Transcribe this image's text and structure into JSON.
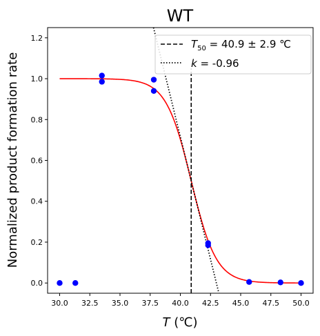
{
  "chart_data": {
    "type": "scatter",
    "title": "WT",
    "xlabel_symbol": "T",
    "xlabel_unit": " (℃)",
    "ylabel": "Normalized product formation rate",
    "xlim": [
      29.0,
      51.0
    ],
    "ylim": [
      -0.05,
      1.25
    ],
    "x_ticks": [
      30.0,
      32.5,
      35.0,
      37.5,
      40.0,
      42.5,
      45.0,
      47.5,
      50.0
    ],
    "x_tick_labels": [
      "30.0",
      "32.5",
      "35.0",
      "37.5",
      "40.0",
      "42.5",
      "45.0",
      "47.5",
      "50.0"
    ],
    "y_ticks": [
      0.0,
      0.2,
      0.4,
      0.6,
      0.8,
      1.0,
      1.2
    ],
    "y_tick_labels": [
      "0.0",
      "0.2",
      "0.4",
      "0.6",
      "0.8",
      "1.0",
      "1.2"
    ],
    "grid": false,
    "legend_position": "top-right",
    "series": [
      {
        "kind": "points",
        "color": "#0000ff",
        "x": [
          30.0,
          31.3,
          33.5,
          33.5,
          37.8,
          37.8,
          42.3,
          42.3,
          45.7,
          48.3,
          50.0
        ],
        "y": [
          0.0,
          0.0,
          1.015,
          0.985,
          0.995,
          0.94,
          0.195,
          0.185,
          0.005,
          0.003,
          0.0
        ]
      },
      {
        "kind": "fit_sigmoid",
        "color": "#ff0000",
        "t50": 40.9,
        "k": -0.96
      },
      {
        "kind": "vline",
        "name_symbol": "T",
        "name_subscript": "50",
        "name_rest": " = 40.9 ± 2.9 ℃",
        "x": 40.9,
        "color": "#000000",
        "style": "dashed"
      },
      {
        "kind": "tangent",
        "name_symbol": "k",
        "name_rest": " = -0.96",
        "slope": -0.24,
        "x0": 40.9,
        "y0": 0.5,
        "color": "#000000",
        "style": "dotted"
      }
    ]
  }
}
